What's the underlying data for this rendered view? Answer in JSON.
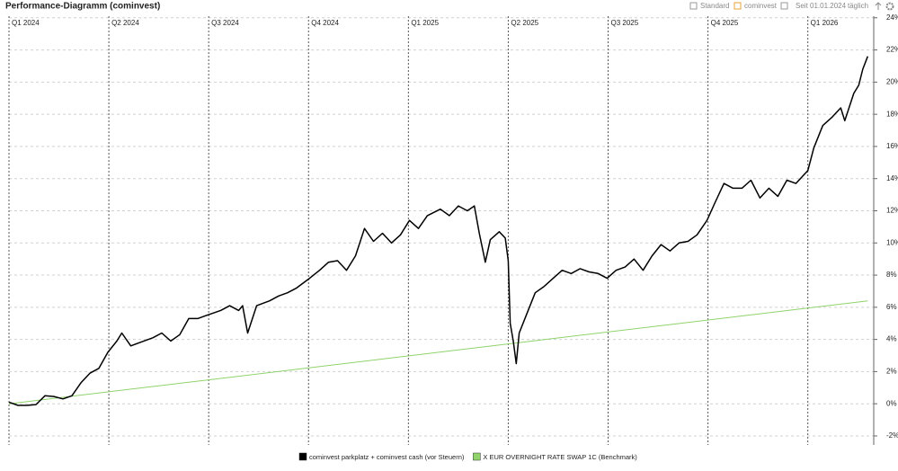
{
  "title": "Performance-Diagramm (cominvest)",
  "toolbar": {
    "view": "Standard",
    "portfolio": "cominvest",
    "period": "Seit 01.01.2024",
    "interval": "täglich"
  },
  "chart_data": {
    "type": "line",
    "xlim": [
      0,
      8.66
    ],
    "xticks": [
      {
        "value": 0,
        "label": "Q1 2024"
      },
      {
        "value": 1,
        "label": "Q2 2024"
      },
      {
        "value": 2,
        "label": "Q3 2024"
      },
      {
        "value": 3,
        "label": "Q4 2024"
      },
      {
        "value": 4,
        "label": "Q1 2025"
      },
      {
        "value": 5,
        "label": "Q2 2025"
      },
      {
        "value": 6,
        "label": "Q3 2025"
      },
      {
        "value": 7,
        "label": "Q4 2025"
      },
      {
        "value": 8,
        "label": "Q1 2026"
      }
    ],
    "ylim": [
      -2.56,
      24.1
    ],
    "yticks": [
      {
        "value": -2,
        "label": "-2%"
      },
      {
        "value": 0,
        "label": "0%"
      },
      {
        "value": 2,
        "label": "2%"
      },
      {
        "value": 4,
        "label": "4%"
      },
      {
        "value": 6,
        "label": "6%"
      },
      {
        "value": 8,
        "label": "8%"
      },
      {
        "value": 10,
        "label": "10%"
      },
      {
        "value": 12,
        "label": "12%"
      },
      {
        "value": 14,
        "label": "14%"
      },
      {
        "value": 16,
        "label": "16%"
      },
      {
        "value": 18,
        "label": "18%"
      },
      {
        "value": 20,
        "label": "20%"
      },
      {
        "value": 22,
        "label": "22%"
      },
      {
        "value": 24,
        "label": "24%"
      }
    ],
    "grid": true,
    "series": [
      {
        "name": "cominvest parkplatz + cominvest cash (vor Steuern)",
        "color": "#000000",
        "x": [
          0,
          0.09,
          0.18,
          0.27,
          0.36,
          0.45,
          0.54,
          0.63,
          0.72,
          0.81,
          0.9,
          0.99,
          1.08,
          1.13,
          1.22,
          1.35,
          1.44,
          1.53,
          1.62,
          1.71,
          1.8,
          1.89,
          1.98,
          2.12,
          2.21,
          2.3,
          2.34,
          2.39,
          2.48,
          2.61,
          2.7,
          2.79,
          2.88,
          3.01,
          3.11,
          3.2,
          3.29,
          3.38,
          3.47,
          3.56,
          3.65,
          3.74,
          3.83,
          3.92,
          4.01,
          4.1,
          4.19,
          4.32,
          4.41,
          4.5,
          4.59,
          4.66,
          4.71,
          4.77,
          4.82,
          4.91,
          4.97,
          5.0,
          5.02,
          5.05,
          5.08,
          5.11,
          5.18,
          5.27,
          5.36,
          5.45,
          5.54,
          5.63,
          5.72,
          5.81,
          5.9,
          5.99,
          6.08,
          6.17,
          6.26,
          6.35,
          6.44,
          6.53,
          6.62,
          6.71,
          6.8,
          6.89,
          6.99,
          7.07,
          7.16,
          7.25,
          7.34,
          7.43,
          7.52,
          7.61,
          7.7,
          7.79,
          7.88,
          8.0,
          8.06,
          8.15,
          8.24,
          8.33,
          8.37,
          8.46,
          8.51,
          8.55,
          8.6
        ],
        "values": [
          0.1,
          -0.1,
          -0.1,
          -0.05,
          0.5,
          0.45,
          0.3,
          0.5,
          1.3,
          1.9,
          2.2,
          3.2,
          3.9,
          4.4,
          3.6,
          3.9,
          4.1,
          4.4,
          3.9,
          4.3,
          5.3,
          5.3,
          5.5,
          5.8,
          6.1,
          5.8,
          6.1,
          4.4,
          6.1,
          6.4,
          6.7,
          6.9,
          7.2,
          7.8,
          8.3,
          8.8,
          8.9,
          8.3,
          9.2,
          10.9,
          10.1,
          10.6,
          10.0,
          10.5,
          11.4,
          10.9,
          11.7,
          12.1,
          11.7,
          12.3,
          12.0,
          12.3,
          10.6,
          8.8,
          10.2,
          10.7,
          10.3,
          8.9,
          5.0,
          3.9,
          2.5,
          4.4,
          5.5,
          6.9,
          7.3,
          7.8,
          8.3,
          8.1,
          8.4,
          8.2,
          8.1,
          7.8,
          8.3,
          8.5,
          9.0,
          8.3,
          9.2,
          9.9,
          9.5,
          10.0,
          10.1,
          10.5,
          11.4,
          12.5,
          13.7,
          13.4,
          13.4,
          13.9,
          12.8,
          13.4,
          12.9,
          13.9,
          13.7,
          14.5,
          15.9,
          17.3,
          17.8,
          18.4,
          17.6,
          19.3,
          19.8,
          20.8,
          21.6
        ]
      },
      {
        "name": "X EUR OVERNIGHT RATE SWAP 1C (Benchmark)",
        "color": "#8fd36a",
        "x": [
          0,
          8.6
        ],
        "values": [
          0,
          6.4
        ]
      }
    ]
  }
}
